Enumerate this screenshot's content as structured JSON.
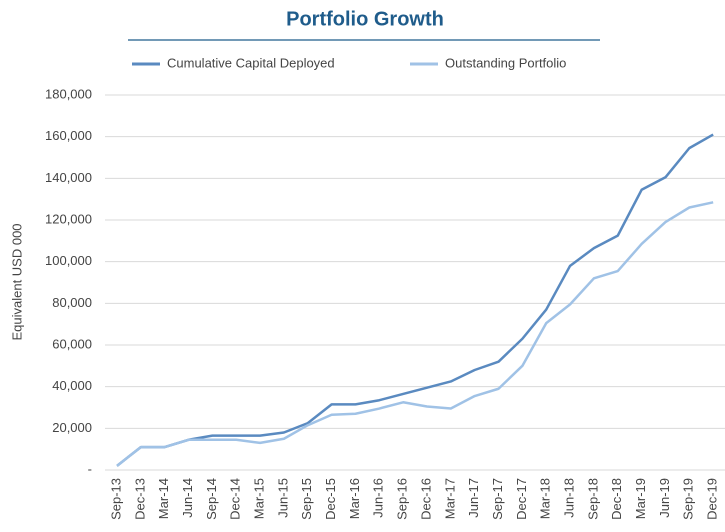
{
  "chart_data": {
    "type": "line",
    "title": "Portfolio Growth",
    "y_label": "Equivalent USD 000",
    "categories": [
      "Sep-13",
      "Dec-13",
      "Mar-14",
      "Jun-14",
      "Sep-14",
      "Dec-14",
      "Mar-15",
      "Jun-15",
      "Sep-15",
      "Dec-15",
      "Mar-16",
      "Jun-16",
      "Sep-16",
      "Dec-16",
      "Mar-17",
      "Jun-17",
      "Sep-17",
      "Dec-17",
      "Mar-18",
      "Jun-18",
      "Sep-18",
      "Dec-18",
      "Mar-19",
      "Jun-19",
      "Sep-19",
      "Dec-19"
    ],
    "series": [
      {
        "name": "Cumulative Capital Deployed",
        "color": "#5a8ac0",
        "values": [
          2000,
          11000,
          11000,
          14500,
          16500,
          16500,
          16500,
          18000,
          22500,
          31500,
          31500,
          33500,
          36500,
          39500,
          42500,
          48000,
          52000,
          63000,
          77000,
          98000,
          106500,
          112500,
          134500,
          140500,
          154500,
          161000
        ]
      },
      {
        "name": "Outstanding Portfolio",
        "color": "#a0c2e6",
        "values": [
          2000,
          11000,
          11000,
          14500,
          14500,
          14500,
          13000,
          15000,
          21500,
          26500,
          27000,
          29500,
          32500,
          30500,
          29500,
          35500,
          39000,
          50000,
          70500,
          79500,
          92000,
          95500,
          108500,
          119000,
          126000,
          128500
        ]
      }
    ],
    "ylim": [
      0,
      180000
    ],
    "yticks": [
      {
        "value": 0,
        "label": "-"
      },
      {
        "value": 20000,
        "label": "20,000"
      },
      {
        "value": 40000,
        "label": "40,000"
      },
      {
        "value": 60000,
        "label": "60,000"
      },
      {
        "value": 80000,
        "label": "80,000"
      },
      {
        "value": 100000,
        "label": "100,000"
      },
      {
        "value": 120000,
        "label": "120,000"
      },
      {
        "value": 140000,
        "label": "140,000"
      },
      {
        "value": 160000,
        "label": "160,000"
      },
      {
        "value": 180000,
        "label": "180,000"
      }
    ],
    "grid": true,
    "legend": "top"
  }
}
